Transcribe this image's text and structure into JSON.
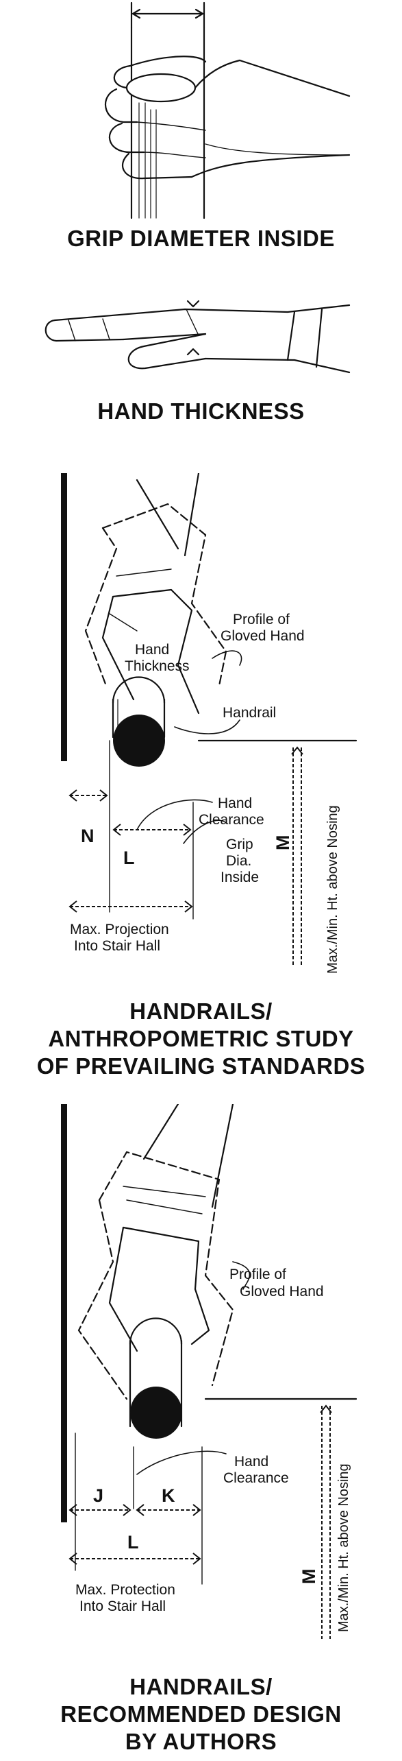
{
  "titles": {
    "grip": "GRIP DIAMETER INSIDE",
    "thickness": "HAND THICKNESS",
    "prevailing": [
      "HANDRAILS/",
      "ANTHROPOMETRIC STUDY",
      "OF PREVAILING STANDARDS"
    ],
    "recommended": [
      "HANDRAILS/",
      "RECOMMENDED DESIGN",
      "BY AUTHORS"
    ]
  },
  "prevailing": {
    "profile": [
      "Profile of",
      "Gloved Hand"
    ],
    "hand_thickness": [
      "Hand",
      "Thickness"
    ],
    "handrail": "Handrail",
    "hand_clearance": [
      "Hand",
      "Clearance"
    ],
    "grip": [
      "Grip",
      "Dia.",
      "Inside"
    ],
    "letter_n": "N",
    "letter_l": "L",
    "letter_m": "M",
    "projection": [
      "Max. Projection",
      "Into Stair Hall"
    ],
    "height": "Max./Min. Ht. above Nosing"
  },
  "recommended": {
    "profile": [
      "Profile of",
      "Gloved Hand"
    ],
    "hand_clearance": [
      "Hand",
      "Clearance"
    ],
    "letter_j": "J",
    "letter_k": "K",
    "letter_l": "L",
    "letter_m": "M",
    "protection": [
      "Max. Protection",
      "Into Stair Hall"
    ],
    "height": "Max./Min. Ht. above Nosing"
  }
}
